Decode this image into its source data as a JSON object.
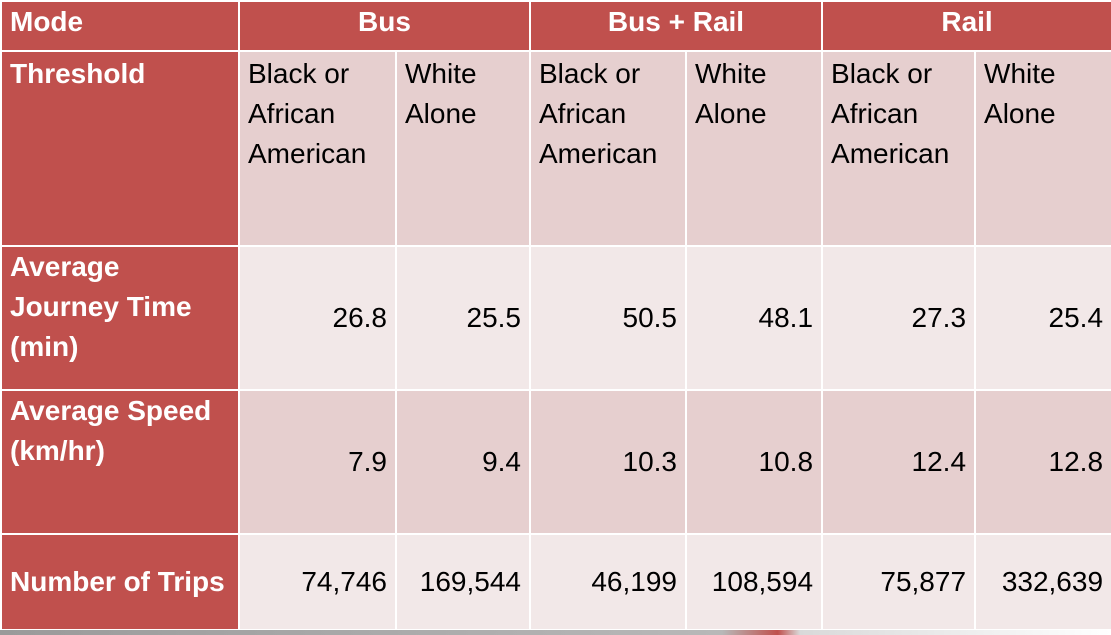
{
  "table": {
    "mode_label": "Mode",
    "threshold_label": "Threshold",
    "modes": [
      "Bus",
      "Bus + Rail",
      "Rail"
    ],
    "groups": [
      "Black or African American",
      "White Alone",
      "Black or African American",
      "White Alone",
      "Black or African American",
      "White Alone"
    ],
    "rows": [
      {
        "label": "Average Journey Time (min)",
        "values": [
          "26.8",
          "25.5",
          "50.5",
          "48.1",
          "27.3",
          "25.4"
        ]
      },
      {
        "label": "Average Speed (km/hr)",
        "values": [
          "7.9",
          "9.4",
          "10.3",
          "10.8",
          "12.4",
          "12.8"
        ]
      },
      {
        "label": "Number of Trips",
        "values": [
          "74,746",
          "169,544",
          "46,199",
          "108,594",
          "75,877",
          "332,639"
        ]
      }
    ]
  },
  "colors": {
    "header": "#c0504d",
    "row_dark": "#e6cfcf",
    "row_light": "#f2e8e8",
    "header_text": "#ffffff"
  }
}
